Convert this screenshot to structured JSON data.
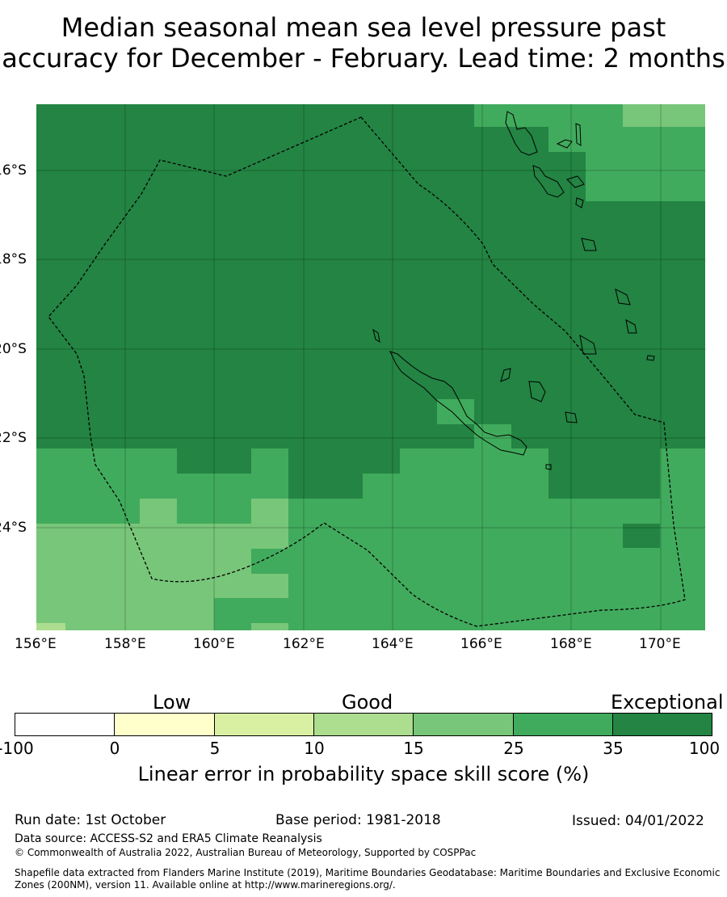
{
  "title": {
    "line1": "Median seasonal mean sea level pressure past",
    "line2": "accuracy for December - February. Lead time: 2 months"
  },
  "map": {
    "lat_ticks": [
      "16°S",
      "18°S",
      "20°S",
      "22°S",
      "24°S"
    ],
    "lon_ticks": [
      "156°E",
      "158°E",
      "160°E",
      "162°E",
      "164°E",
      "166°E",
      "168°E",
      "170°E"
    ],
    "extent": {
      "lon": [
        156,
        171
      ],
      "lat": [
        -26.2,
        -14.5
      ]
    },
    "land_color": "none",
    "boundary_style": "dashed"
  },
  "colorbar": {
    "categories": [
      "Low",
      "Good",
      "Exceptional"
    ],
    "tick_labels": [
      "-100",
      "0",
      "5",
      "10",
      "15",
      "25",
      "35",
      "100"
    ],
    "colors": [
      "#ffffff",
      "#ffffcc",
      "#d9f0a3",
      "#addd8e",
      "#78c679",
      "#41ab5d",
      "#238443"
    ],
    "label": "Linear error in probability space skill score (%)"
  },
  "footer": {
    "run_date": "Run date: 1st October",
    "base_period": "Base period: 1981-2018",
    "issued": "Issued: 04/01/2022",
    "data_source": "Data source: ACCESS-S2 and ERA5 Climate Reanalysis",
    "copyright": "© Commonwealth of Australia 2022, Australian Bureau of Meteorology, Supported by COSPPac",
    "shapefile": "Shapefile data extracted from Flanders Marine Institute (2019), Maritime Boundaries Geodatabase: Maritime Boundaries and Exclusive Economic Zones (200NM), version 11. Available online at http://www.marineregions.org/."
  }
}
